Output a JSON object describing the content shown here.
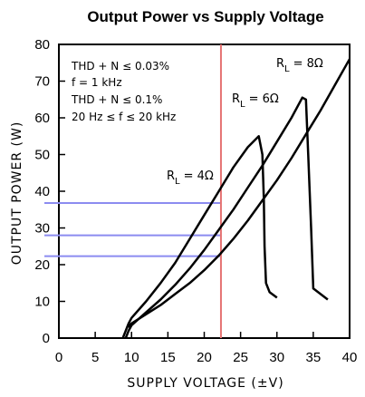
{
  "chart_data": {
    "type": "line",
    "title": "Output Power vs Supply Voltage",
    "xlabel": "SUPPLY VOLTAGE (±V)",
    "ylabel": "OUTPUT POWER (W)",
    "xlim": [
      0,
      40
    ],
    "ylim": [
      0,
      80
    ],
    "xticks": [
      "0",
      "5",
      "10",
      "15",
      "20",
      "25",
      "30",
      "35",
      "40"
    ],
    "yticks": [
      "0",
      "10",
      "20",
      "30",
      "40",
      "50",
      "60",
      "70",
      "80"
    ],
    "grid": false,
    "notes": [
      "THD + N ≤ 0.03%",
      "f = 1 kHz",
      "THD + N ≤ 0.1%",
      "20 Hz ≤ f ≤ 20 kHz"
    ],
    "series": [
      {
        "name": "RL = 4Ω",
        "label_main": "R",
        "label_sub": "L",
        "label_value": "= 4Ω",
        "color": "#000000",
        "x": [
          8.8,
          9.2,
          9.6,
          10,
          12,
          14,
          16,
          18,
          20,
          22,
          24,
          26,
          27.5,
          28,
          28.2,
          28.3,
          28.5,
          29,
          30
        ],
        "y": [
          0,
          2,
          4,
          5.5,
          10,
          15,
          20.5,
          27,
          33.5,
          40,
          46.5,
          52,
          55,
          50,
          38,
          25,
          15,
          12.5,
          11
        ]
      },
      {
        "name": "RL = 6Ω",
        "label_main": "R",
        "label_sub": "L",
        "label_value": "= 6Ω",
        "color": "#000000",
        "x": [
          9.2,
          9.6,
          10,
          12,
          14,
          16,
          18,
          20,
          22,
          24,
          26,
          28,
          30,
          32,
          33.5,
          34,
          34.3,
          34.7,
          35,
          36,
          37
        ],
        "y": [
          0,
          2,
          3.5,
          7,
          10.5,
          14.5,
          19,
          24,
          29.5,
          35,
          41,
          47,
          53.5,
          60,
          65.5,
          65,
          50,
          30,
          13.5,
          12,
          10.5
        ]
      },
      {
        "name": "RL = 8Ω",
        "label_main": "R",
        "label_sub": "L",
        "label_value": "= 8Ω",
        "color": "#000000",
        "x": [
          9.5,
          10,
          12,
          14,
          16,
          18,
          20,
          22,
          24,
          26,
          28,
          30,
          32,
          34,
          36,
          38,
          40
        ],
        "y": [
          3,
          4,
          6.5,
          9,
          12,
          15,
          18.5,
          22.5,
          27,
          32,
          37.5,
          43,
          49,
          55.5,
          62,
          69,
          76
        ]
      }
    ],
    "reference_lines": {
      "vertical_x": 22.3,
      "vertical_color": "#e57373",
      "horizontal_y": [
        36.8,
        28,
        22.3
      ],
      "horizontal_color": "#8c8cf0"
    }
  }
}
